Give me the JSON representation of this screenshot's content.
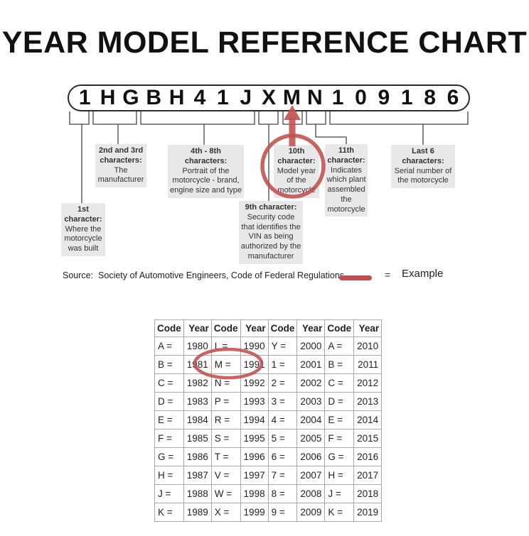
{
  "title": "YEAR MODEL REFERENCE CHART",
  "vin": {
    "characters": [
      "1",
      "H",
      "G",
      "B",
      "H",
      "4",
      "1",
      "J",
      "X",
      "M",
      "N",
      "1",
      "0",
      "9",
      "1",
      "8",
      "6"
    ]
  },
  "callouts": {
    "first_char": {
      "heading": "1st\ncharacter:",
      "body": "Where the\nmotorcycle\nwas built"
    },
    "second_third": {
      "heading": "2nd and 3rd\ncharacters:",
      "body": "The\nmanufacturer"
    },
    "fourth_eighth": {
      "heading": "4th - 8th\ncharacters:",
      "body": "Portrait of the\nmotorcycle - brand,\nengine size and type"
    },
    "ninth": {
      "heading": "9th character:",
      "body": "Security code\nthat identifies the\nVIN as being\nauthorized by the\nmanufacturer"
    },
    "tenth": {
      "heading": "10th\ncharacter:",
      "body": "Model year\nof the\nmotorcycle"
    },
    "eleventh": {
      "heading": "11th\ncharacter:",
      "body": "Indicates\nwhich plant\nassembled\nthe\nmotorcycle"
    },
    "last_six": {
      "heading": "Last 6\ncharacters:",
      "body": "Serial number of\nthe motorcycle"
    }
  },
  "source": "Source:  Society of Automotive Engineers, Code of Federal Regulations",
  "legend": {
    "equals": "=",
    "label": "Example"
  },
  "table": {
    "headers": [
      "Code",
      "Year",
      "Code",
      "Year",
      "Code",
      "Year",
      "Code",
      "Year"
    ],
    "rows": [
      [
        "A =",
        "1980",
        "L =",
        "1990",
        "Y =",
        "2000",
        "A =",
        "2010"
      ],
      [
        "B =",
        "1981",
        "M =",
        "1991",
        "1 =",
        "2001",
        "B =",
        "2011"
      ],
      [
        "C =",
        "1982",
        "N =",
        "1992",
        "2 =",
        "2002",
        "C =",
        "2012"
      ],
      [
        "D =",
        "1983",
        "P =",
        "1993",
        "3 =",
        "2003",
        "D =",
        "2013"
      ],
      [
        "E =",
        "1984",
        "R =",
        "1994",
        "4 =",
        "2004",
        "E =",
        "2014"
      ],
      [
        "F =",
        "1985",
        "S =",
        "1995",
        "5 =",
        "2005",
        "F =",
        "2015"
      ],
      [
        "G =",
        "1986",
        "T =",
        "1996",
        "6 =",
        "2006",
        "G =",
        "2016"
      ],
      [
        "H =",
        "1987",
        "V =",
        "1997",
        "7 =",
        "2007",
        "H =",
        "2017"
      ],
      [
        "J =",
        "1988",
        "W =",
        "1998",
        "8 =",
        "2008",
        "J =",
        "2018"
      ],
      [
        "K =",
        "1989",
        "X =",
        "1999",
        "9 =",
        "2009",
        "K =",
        "2019"
      ]
    ],
    "highlighted_cell": "M = 1991"
  },
  "colors": {
    "accent": "#c0504d",
    "callout_bg": "#e8e8e8",
    "table_border": "#a8a8a8"
  }
}
